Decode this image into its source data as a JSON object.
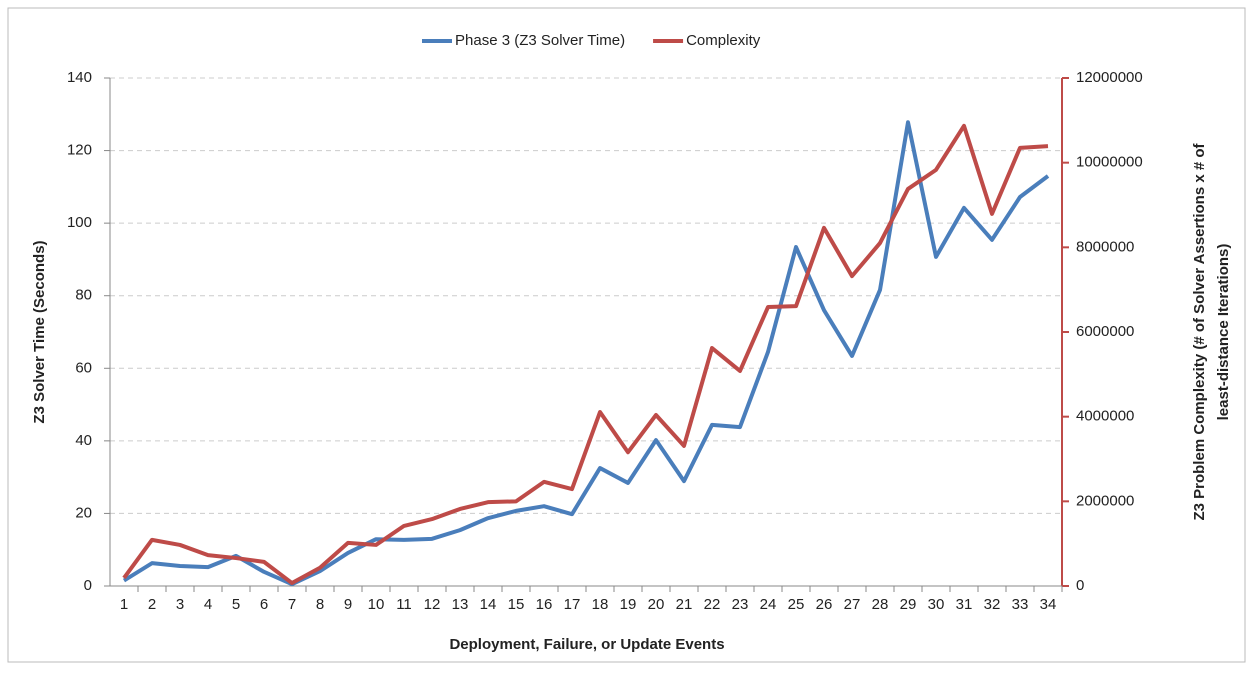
{
  "chart_data": {
    "type": "line",
    "xlabel": "Deployment, Failure, or Update Events",
    "ylabel": "Z3 Solver Time (Seconds)",
    "y2label": [
      "Z3 Problem Complexity (# of Solver Assertions x # of",
      "least-distance Iterations)"
    ],
    "categories": [
      "1",
      "2",
      "3",
      "4",
      "5",
      "6",
      "7",
      "8",
      "9",
      "10",
      "11",
      "12",
      "13",
      "14",
      "15",
      "16",
      "17",
      "18",
      "19",
      "20",
      "21",
      "22",
      "23",
      "24",
      "25",
      "26",
      "27",
      "28",
      "29",
      "30",
      "31",
      "32",
      "33",
      "34"
    ],
    "series": [
      {
        "name": "Phase 3 (Z3 Solver Time)",
        "color": "#4a7ebb",
        "values": [
          1.5,
          6.3,
          5.5,
          5.2,
          8.3,
          3.9,
          0.5,
          4.1,
          9.1,
          12.9,
          12.7,
          13,
          15.4,
          18.7,
          20.7,
          22,
          19.8,
          32.5,
          28.4,
          40.2,
          28.9,
          44.4,
          43.8,
          64.5,
          93.4,
          76,
          63.4,
          81.6,
          127.8,
          90.7,
          104.2,
          95.4,
          107.2,
          113
        ]
      },
      {
        "name": "Complexity",
        "color": "#be4b48",
        "axis": "y2",
        "values": [
          190000,
          1090000,
          970000,
          730000,
          660000,
          570000,
          70000,
          430000,
          1020000,
          970000,
          1420000,
          1580000,
          1820000,
          1980000,
          2000000,
          2460000,
          2290000,
          4110000,
          3160000,
          4040000,
          3310000,
          5620000,
          5080000,
          6590000,
          6610000,
          8460000,
          7320000,
          8100000,
          9380000,
          9830000,
          10870000,
          8790000,
          10350000,
          10390000
        ]
      }
    ],
    "ylim": [
      0,
      140
    ],
    "yticks": [
      0,
      20,
      40,
      60,
      80,
      100,
      120,
      140
    ],
    "y2lim": [
      0,
      12000000
    ],
    "y2ticks": [
      0,
      2000000,
      4000000,
      6000000,
      8000000,
      10000000,
      12000000
    ],
    "grid": true,
    "legend": "top"
  }
}
